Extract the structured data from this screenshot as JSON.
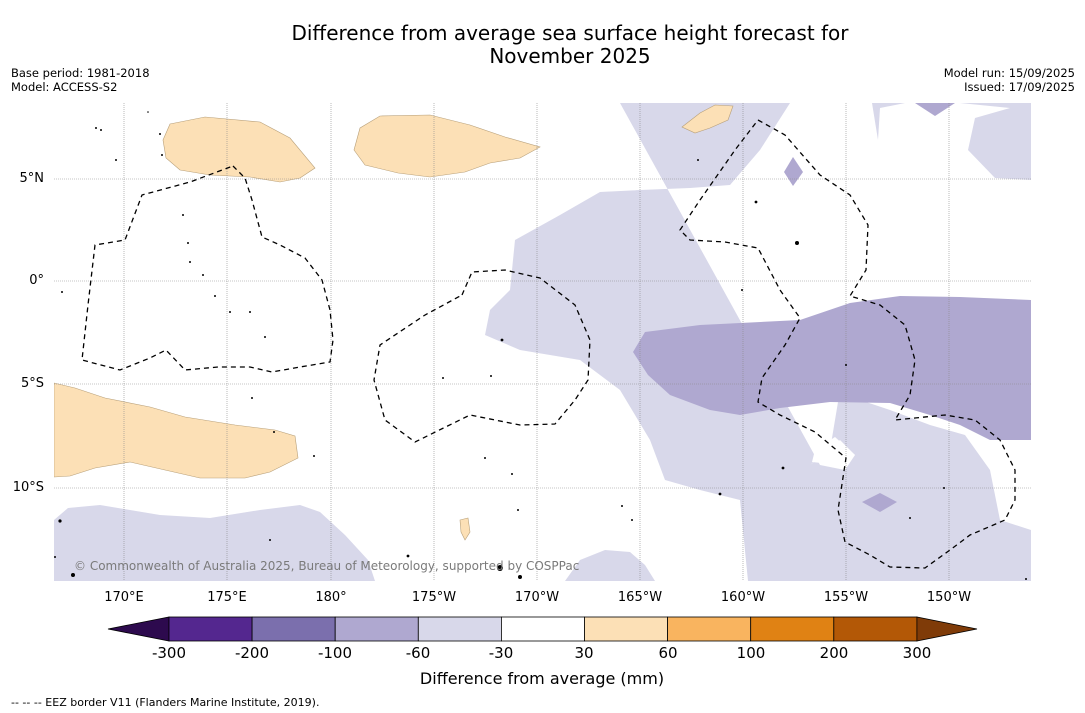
{
  "title_line1": "Difference from average sea surface height forecast for",
  "title_line2": "November 2025",
  "meta_left": {
    "base_period": "Base period: 1981-2018",
    "model": "Model: ACCESS-S2"
  },
  "meta_right": {
    "model_run": "Model run: 15/09/2025",
    "issued": "Issued: 17/09/2025"
  },
  "lon_ticks": [
    "170°E",
    "175°E",
    "180°",
    "175°W",
    "170°W",
    "165°W",
    "160°W",
    "155°W",
    "150°W"
  ],
  "lat_ticks": [
    "5°N",
    "0°",
    "5°S",
    "10°S"
  ],
  "copyright": "© Commonwealth of Australia 2025, Bureau of Meteorology, supported by COSPPac",
  "colorbar": {
    "labels": [
      "-300",
      "-200",
      "-100",
      "-60",
      "-30",
      "30",
      "60",
      "100",
      "200",
      "300"
    ],
    "colors": [
      "#2d0a4e",
      "#54278f",
      "#7b6fad",
      "#afa8d0",
      "#d8d8ea",
      "#ffffff",
      "#fce0b6",
      "#f9b45f",
      "#e08214",
      "#b35806",
      "#7f3b08"
    ],
    "title": "Difference from average (mm)"
  },
  "eez_note": "--  --  -- EEZ border V11 (Flanders Marine Institute, 2019)."
}
